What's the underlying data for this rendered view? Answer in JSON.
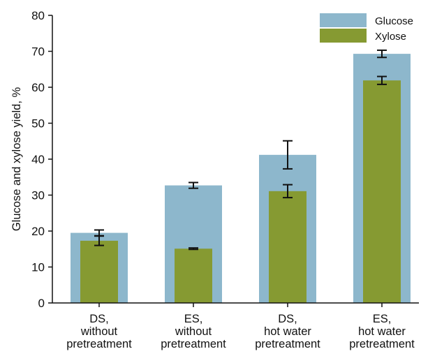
{
  "chart_data": {
    "type": "bar",
    "categories": [
      [
        "DS,",
        "without",
        "pretreatment"
      ],
      [
        "ES,",
        "without",
        "pretreatment"
      ],
      [
        "DS,",
        "hot water",
        "pretreatment"
      ],
      [
        "ES,",
        "hot water",
        "pretreatment"
      ]
    ],
    "series": [
      {
        "name": "Glucose",
        "color": "#8db7cc",
        "values": [
          19.5,
          32.7,
          41.2,
          69.3
        ],
        "errors": [
          0.8,
          0.8,
          3.9,
          1.0
        ]
      },
      {
        "name": "Xylose",
        "color": "#869a32",
        "values": [
          17.3,
          15.1,
          31.1,
          61.9
        ],
        "errors": [
          1.3,
          0.2,
          1.8,
          1.1
        ]
      }
    ],
    "ylabel": "Glucose and xylose yield, %",
    "ylim": [
      0,
      80
    ],
    "yticks": [
      0,
      10,
      20,
      30,
      40,
      50,
      60,
      70,
      80
    ],
    "legend": "top-right",
    "grid": false
  }
}
